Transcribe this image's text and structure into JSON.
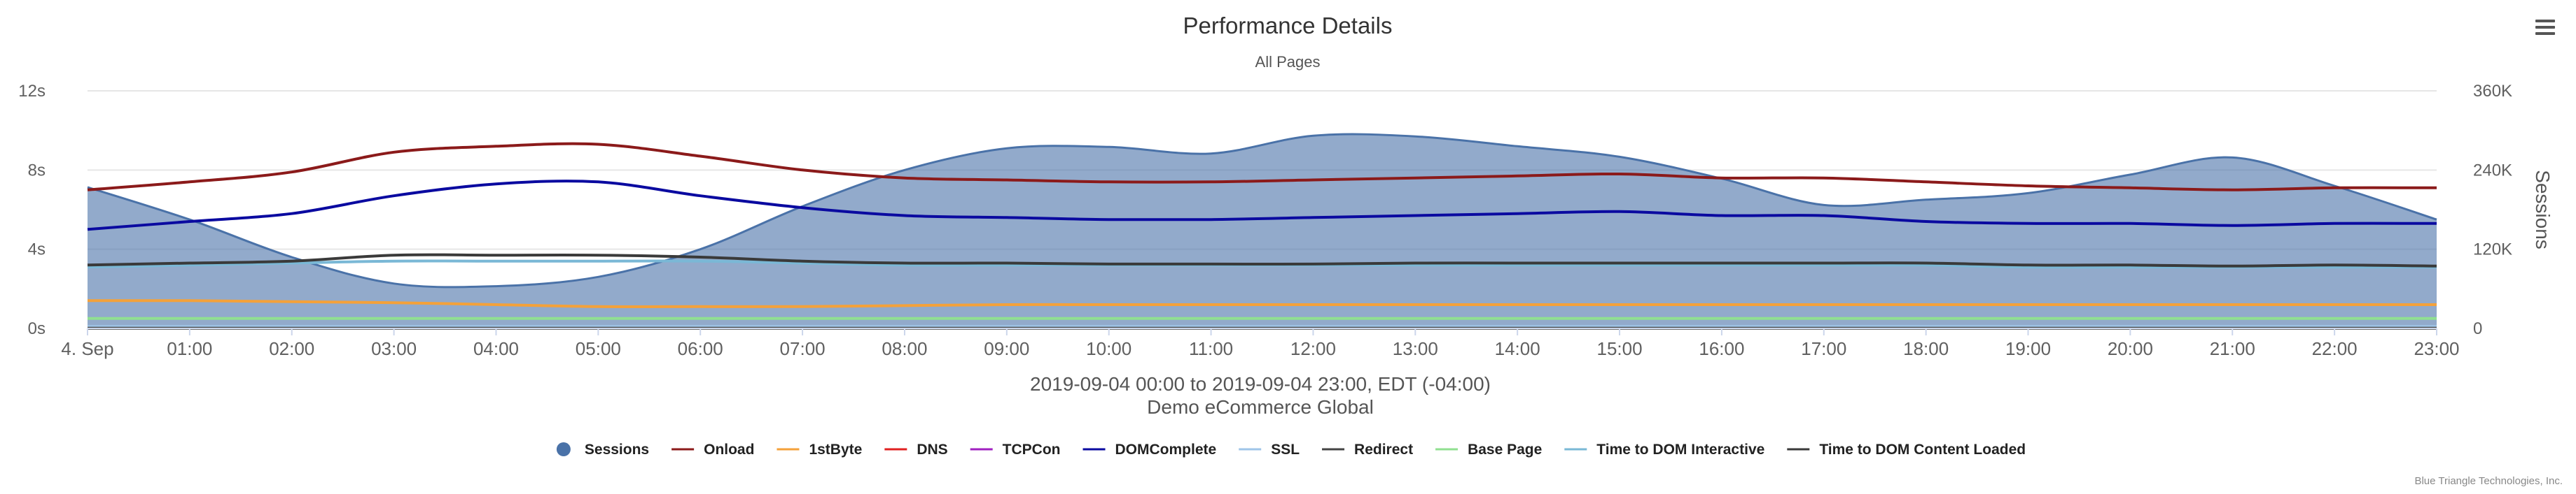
{
  "chart_data": {
    "type": "area",
    "title": "Performance Details",
    "subtitle": "All Pages",
    "categories": [
      "4. Sep",
      "01:00",
      "02:00",
      "03:00",
      "04:00",
      "05:00",
      "06:00",
      "07:00",
      "08:00",
      "09:00",
      "10:00",
      "11:00",
      "12:00",
      "13:00",
      "14:00",
      "15:00",
      "16:00",
      "17:00",
      "18:00",
      "19:00",
      "20:00",
      "21:00",
      "22:00",
      "23:00"
    ],
    "y_left": {
      "ticks": [
        "0s",
        "4s",
        "8s",
        "12s"
      ],
      "range": [
        0,
        12
      ]
    },
    "y_right": {
      "title": "Sessions",
      "ticks": [
        "0",
        "120K",
        "240K",
        "360K"
      ],
      "range": [
        0,
        360000
      ]
    },
    "caption_line1": "2019-09-04 00:00 to 2019-09-04 23:00, EDT (-04:00)",
    "caption_line2": "Demo eCommerce Global",
    "credits": "Blue Triangle Technologies, Inc.",
    "grid": true,
    "legend_position": "bottom-center",
    "series": [
      {
        "name": "Sessions",
        "type": "area",
        "axis": "right",
        "color": "#4a72a8",
        "symbol": "circle",
        "values": [
          214000,
          165000,
          108000,
          68000,
          64000,
          78000,
          120000,
          185000,
          240000,
          273000,
          275000,
          265000,
          292000,
          291000,
          276000,
          260000,
          227000,
          187000,
          195000,
          205000,
          233000,
          259000,
          216000,
          165000
        ]
      },
      {
        "name": "Onload",
        "type": "line",
        "axis": "left",
        "color": "#8b1a1a",
        "symbol": "line",
        "values": [
          7.0,
          7.4,
          7.9,
          8.9,
          9.2,
          9.3,
          8.7,
          8.0,
          7.6,
          7.5,
          7.4,
          7.4,
          7.5,
          7.6,
          7.7,
          7.8,
          7.6,
          7.6,
          7.4,
          7.2,
          7.1,
          7.0,
          7.1,
          7.1
        ]
      },
      {
        "name": "1stByte",
        "type": "line",
        "axis": "left",
        "color": "#f4a13a",
        "symbol": "line",
        "values": [
          1.4,
          1.4,
          1.35,
          1.3,
          1.2,
          1.1,
          1.1,
          1.1,
          1.15,
          1.2,
          1.2,
          1.2,
          1.2,
          1.2,
          1.2,
          1.2,
          1.2,
          1.2,
          1.2,
          1.2,
          1.2,
          1.2,
          1.2,
          1.2
        ]
      },
      {
        "name": "DNS",
        "type": "line",
        "axis": "left",
        "color": "#e02020",
        "symbol": "line",
        "values": [
          0.02,
          0.02,
          0.02,
          0.02,
          0.02,
          0.02,
          0.02,
          0.02,
          0.02,
          0.02,
          0.02,
          0.02,
          0.02,
          0.02,
          0.02,
          0.02,
          0.02,
          0.02,
          0.02,
          0.02,
          0.02,
          0.02,
          0.02,
          0.02
        ]
      },
      {
        "name": "TCPCon",
        "type": "line",
        "axis": "left",
        "color": "#a020c0",
        "symbol": "line",
        "values": [
          0.04,
          0.04,
          0.04,
          0.04,
          0.04,
          0.04,
          0.04,
          0.04,
          0.04,
          0.04,
          0.04,
          0.04,
          0.04,
          0.04,
          0.04,
          0.04,
          0.04,
          0.04,
          0.04,
          0.04,
          0.04,
          0.04,
          0.04,
          0.04
        ]
      },
      {
        "name": "DOMComplete",
        "type": "line",
        "axis": "left",
        "color": "#0a0aa0",
        "symbol": "line",
        "values": [
          5.0,
          5.4,
          5.8,
          6.7,
          7.3,
          7.4,
          6.7,
          6.1,
          5.7,
          5.6,
          5.5,
          5.5,
          5.6,
          5.7,
          5.8,
          5.9,
          5.7,
          5.7,
          5.4,
          5.3,
          5.3,
          5.2,
          5.3,
          5.3
        ]
      },
      {
        "name": "SSL",
        "type": "line",
        "axis": "left",
        "color": "#9fc5e8",
        "symbol": "line",
        "values": [
          0.1,
          0.1,
          0.1,
          0.1,
          0.1,
          0.1,
          0.1,
          0.1,
          0.1,
          0.1,
          0.1,
          0.1,
          0.1,
          0.1,
          0.1,
          0.1,
          0.1,
          0.1,
          0.1,
          0.1,
          0.1,
          0.1,
          0.1,
          0.1
        ]
      },
      {
        "name": "Redirect",
        "type": "line",
        "axis": "left",
        "color": "#444444",
        "symbol": "line",
        "values": [
          0.01,
          0.01,
          0.01,
          0.01,
          0.01,
          0.01,
          0.01,
          0.01,
          0.01,
          0.01,
          0.01,
          0.01,
          0.01,
          0.01,
          0.01,
          0.01,
          0.01,
          0.01,
          0.01,
          0.01,
          0.01,
          0.01,
          0.01,
          0.01
        ]
      },
      {
        "name": "Base Page",
        "type": "line",
        "axis": "left",
        "color": "#90e090",
        "symbol": "line",
        "values": [
          0.5,
          0.5,
          0.5,
          0.5,
          0.5,
          0.5,
          0.5,
          0.5,
          0.5,
          0.5,
          0.5,
          0.5,
          0.5,
          0.5,
          0.5,
          0.5,
          0.5,
          0.5,
          0.5,
          0.5,
          0.5,
          0.5,
          0.5,
          0.5
        ]
      },
      {
        "name": "Time to DOM Interactive",
        "type": "line",
        "axis": "left",
        "color": "#7ab8d6",
        "symbol": "line",
        "values": [
          3.1,
          3.2,
          3.3,
          3.4,
          3.4,
          3.4,
          3.4,
          3.3,
          3.2,
          3.2,
          3.2,
          3.2,
          3.2,
          3.2,
          3.2,
          3.2,
          3.2,
          3.2,
          3.2,
          3.1,
          3.1,
          3.1,
          3.1,
          3.1
        ]
      },
      {
        "name": "Time to DOM Content Loaded",
        "type": "line",
        "axis": "left",
        "color": "#3a3a3a",
        "symbol": "line",
        "values": [
          3.2,
          3.3,
          3.4,
          3.7,
          3.7,
          3.7,
          3.6,
          3.4,
          3.3,
          3.3,
          3.25,
          3.25,
          3.25,
          3.3,
          3.3,
          3.3,
          3.3,
          3.3,
          3.3,
          3.2,
          3.2,
          3.15,
          3.2,
          3.15
        ]
      }
    ]
  }
}
